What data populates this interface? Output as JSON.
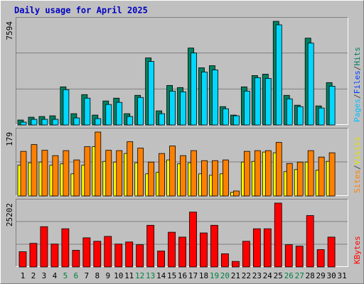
{
  "title": "Daily usage for April 2025",
  "chart_data": [
    {
      "type": "bar",
      "ylim": [
        0,
        7594
      ],
      "yticks": [
        7594
      ],
      "legend": [
        {
          "text": "Pages",
          "color": "#00c0ff"
        },
        {
          "text": "/",
          "color": "#404040"
        },
        {
          "text": "Files",
          "color": "#0040ff"
        },
        {
          "text": "/",
          "color": "#404040"
        },
        {
          "text": "Hits",
          "color": "#008060"
        }
      ],
      "series": [
        {
          "color": "#008060",
          "values": [
            362,
            569,
            620,
            672,
            2792,
            827,
            2223,
            724,
            1758,
            1965,
            827,
            2171,
            4912,
            1034,
            2895,
            2740,
            5636,
            4188,
            4343,
            1344,
            724,
            2792,
            3619,
            3722,
            7594,
            2171,
            1448,
            6360,
            1396,
            3102,
            null
          ]
        },
        {
          "color": "#00d8ff",
          "values": [
            207,
            414,
            414,
            414,
            2585,
            517,
            1965,
            465,
            1500,
            1655,
            620,
            2016,
            4653,
            827,
            2482,
            2430,
            5274,
            3878,
            4033,
            1189,
            672,
            2482,
            3464,
            3412,
            7335,
            1913,
            1344,
            5998,
            1241,
            2843,
            null
          ]
        }
      ]
    },
    {
      "type": "bar",
      "ylim": [
        0,
        179
      ],
      "yticks": [
        179
      ],
      "legend": [
        {
          "text": "Sites",
          "color": "#ff8000"
        },
        {
          "text": "/",
          "color": "#404040"
        },
        {
          "text": "Visits",
          "color": "#e0e000"
        }
      ],
      "series": [
        {
          "color": "#ffff00",
          "values": [
            86,
            93,
            95,
            86,
            90,
            62,
            86,
            138,
            97,
            95,
            119,
            93,
            62,
            66,
            101,
            90,
            93,
            62,
            58,
            62,
            10,
            95,
            97,
            123,
            121,
            68,
            74,
            95,
            72,
            97,
            null
          ]
        },
        {
          "color": "#ff8000",
          "values": [
            125,
            144,
            128,
            113,
            127,
            101,
            138,
            179,
            128,
            127,
            152,
            134,
            95,
            119,
            140,
            113,
            127,
            99,
            99,
            101,
            14,
            125,
            127,
            127,
            150,
            91,
            95,
            127,
            109,
            121,
            null
          ]
        }
      ]
    },
    {
      "type": "bar",
      "ylim": [
        0,
        25202
      ],
      "yticks": [
        25202
      ],
      "legend": [
        {
          "text": "KBytes",
          "color": "#ff0000"
        }
      ],
      "series": [
        {
          "color": "#ff0000",
          "values": [
            6028,
            9316,
            15892,
            9042,
            15070,
            6576,
            11508,
            10138,
            12056,
            9042,
            9864,
            8768,
            16440,
            6302,
            13700,
            11782,
            21646,
            13426,
            16440,
            5206,
            2192,
            10138,
            15070,
            15070,
            25202,
            8768,
            8220,
            20276,
            6850,
            11782,
            null
          ]
        }
      ],
      "categories": [
        "1",
        "2",
        "3",
        "4",
        "5",
        "6",
        "7",
        "8",
        "9",
        "10",
        "11",
        "12",
        "13",
        "14",
        "15",
        "16",
        "17",
        "18",
        "19",
        "20",
        "21",
        "22",
        "23",
        "24",
        "25",
        "26",
        "27",
        "28",
        "29",
        "30",
        "31"
      ],
      "weekend_days": [
        "5",
        "6",
        "12",
        "13",
        "19",
        "20",
        "26",
        "27"
      ],
      "weekend_color": "#008040",
      "day_color": "#000000"
    }
  ]
}
